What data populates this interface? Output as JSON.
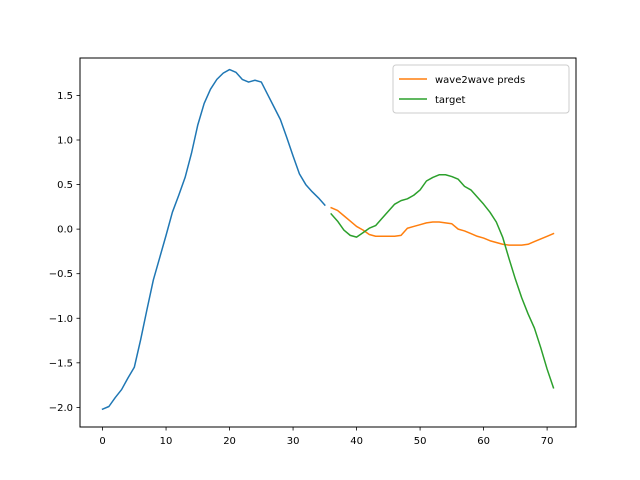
{
  "chart_data": {
    "type": "line",
    "title": "",
    "xlabel": "",
    "ylabel": "",
    "xlim": [
      -3.55,
      74.55
    ],
    "ylim": [
      -2.22,
      1.92
    ],
    "xticks": [
      0,
      10,
      20,
      30,
      40,
      50,
      60,
      70
    ],
    "yticks": [
      -2.0,
      -1.5,
      -1.0,
      -0.5,
      0.0,
      0.5,
      1.0,
      1.5
    ],
    "ytick_labels": [
      "−2.0",
      "−1.5",
      "−1.0",
      "−0.5",
      "0.0",
      "0.5",
      "1.0",
      "1.5"
    ],
    "grid": false,
    "legend_position": "upper right",
    "series": [
      {
        "name": "",
        "color": "#1f77b4",
        "in_legend": false,
        "x": [
          0,
          1,
          2,
          3,
          4,
          5,
          6,
          7,
          8,
          9,
          10,
          11,
          12,
          13,
          14,
          15,
          16,
          17,
          18,
          19,
          20,
          21,
          22,
          23,
          24,
          25,
          26,
          27,
          28,
          29,
          30,
          31,
          32,
          33,
          34,
          35
        ],
        "y": [
          -2.02,
          -1.99,
          -1.89,
          -1.8,
          -1.67,
          -1.55,
          -1.24,
          -0.9,
          -0.57,
          -0.32,
          -0.07,
          0.19,
          0.38,
          0.58,
          0.85,
          1.17,
          1.41,
          1.57,
          1.68,
          1.75,
          1.79,
          1.76,
          1.68,
          1.65,
          1.67,
          1.65,
          1.51,
          1.37,
          1.23,
          1.03,
          0.82,
          0.62,
          0.5,
          0.42,
          0.35,
          0.27
        ]
      },
      {
        "name": "wave2wave preds",
        "color": "#ff7f0e",
        "in_legend": true,
        "x": [
          36,
          37,
          38,
          39,
          40,
          41,
          42,
          43,
          44,
          45,
          46,
          47,
          48,
          49,
          50,
          51,
          52,
          53,
          54,
          55,
          56,
          57,
          58,
          59,
          60,
          61,
          62,
          63,
          64,
          65,
          66,
          67,
          68,
          69,
          70,
          71
        ],
        "y": [
          0.24,
          0.21,
          0.15,
          0.09,
          0.03,
          -0.01,
          -0.06,
          -0.08,
          -0.08,
          -0.08,
          -0.08,
          -0.07,
          0.01,
          0.03,
          0.05,
          0.07,
          0.08,
          0.08,
          0.07,
          0.06,
          0.0,
          -0.02,
          -0.05,
          -0.08,
          -0.1,
          -0.13,
          -0.15,
          -0.17,
          -0.18,
          -0.18,
          -0.18,
          -0.17,
          -0.14,
          -0.11,
          -0.08,
          -0.05
        ]
      },
      {
        "name": "target",
        "color": "#2ca02c",
        "in_legend": true,
        "x": [
          36,
          37,
          38,
          39,
          40,
          41,
          42,
          43,
          44,
          45,
          46,
          47,
          48,
          49,
          50,
          51,
          52,
          53,
          54,
          55,
          56,
          57,
          58,
          59,
          60,
          61,
          62,
          63,
          64,
          65,
          66,
          67,
          68,
          69,
          70,
          71
        ],
        "y": [
          0.17,
          0.09,
          -0.01,
          -0.07,
          -0.09,
          -0.04,
          0.01,
          0.04,
          0.12,
          0.2,
          0.28,
          0.32,
          0.34,
          0.38,
          0.44,
          0.54,
          0.58,
          0.61,
          0.61,
          0.59,
          0.56,
          0.48,
          0.44,
          0.36,
          0.28,
          0.19,
          0.08,
          -0.09,
          -0.33,
          -0.56,
          -0.77,
          -0.95,
          -1.11,
          -1.33,
          -1.57,
          -1.78
        ]
      }
    ]
  }
}
